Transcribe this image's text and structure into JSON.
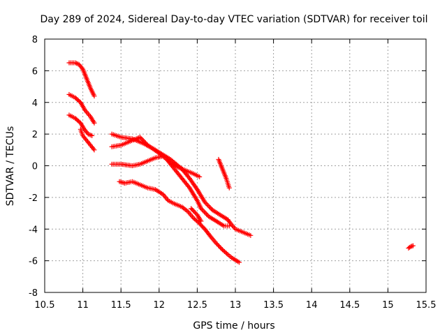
{
  "chart_data": {
    "type": "scatter",
    "title": "Day 289 of 2024, Sidereal Day-to-day VTEC variation (SDTVAR) for receiver toil",
    "xlabel": "GPS time / hours",
    "ylabel": "SDTVAR / TECUs",
    "xlim": [
      10.5,
      15.5
    ],
    "ylim": [
      -8,
      8
    ],
    "xticks": [
      10.5,
      11,
      11.5,
      12,
      12.5,
      13,
      13.5,
      14,
      14.5,
      15,
      15.5
    ],
    "yticks": [
      -8,
      -6,
      -4,
      -2,
      0,
      2,
      4,
      6,
      8
    ],
    "xtick_labels": [
      "10.5",
      "11",
      "11.5",
      "12",
      "12.5",
      "13",
      "13.5",
      "14",
      "14.5",
      "15",
      "15.5"
    ],
    "ytick_labels": [
      "-8",
      "-6",
      "-4",
      "-2",
      "0",
      "2",
      "4",
      "6",
      "8"
    ],
    "grid": true,
    "marker": "+",
    "color": "#ff0000",
    "series": [
      {
        "name": "arc1",
        "points": [
          [
            10.82,
            6.5
          ],
          [
            10.9,
            6.5
          ],
          [
            10.95,
            6.4
          ],
          [
            11.0,
            6.1
          ],
          [
            11.05,
            5.5
          ],
          [
            11.1,
            4.9
          ],
          [
            11.15,
            4.4
          ]
        ]
      },
      {
        "name": "arc2",
        "points": [
          [
            10.82,
            4.5
          ],
          [
            10.9,
            4.3
          ],
          [
            10.97,
            4.0
          ],
          [
            11.03,
            3.5
          ],
          [
            11.1,
            3.1
          ],
          [
            11.15,
            2.7
          ]
        ]
      },
      {
        "name": "arc3",
        "points": [
          [
            10.82,
            3.2
          ],
          [
            10.9,
            3.0
          ],
          [
            10.97,
            2.7
          ],
          [
            11.02,
            2.3
          ],
          [
            11.07,
            2.0
          ],
          [
            11.12,
            1.9
          ]
        ]
      },
      {
        "name": "arc4",
        "points": [
          [
            10.97,
            2.3
          ],
          [
            11.0,
            1.9
          ],
          [
            11.05,
            1.6
          ],
          [
            11.1,
            1.3
          ],
          [
            11.15,
            1.0
          ]
        ]
      },
      {
        "name": "arc5",
        "points": [
          [
            11.38,
            2.0
          ],
          [
            11.5,
            1.8
          ],
          [
            11.65,
            1.7
          ],
          [
            11.8,
            1.4
          ],
          [
            11.95,
            1.0
          ],
          [
            12.05,
            0.7
          ],
          [
            12.15,
            0.4
          ],
          [
            12.3,
            -0.2
          ],
          [
            12.4,
            -0.8
          ],
          [
            12.5,
            -1.5
          ],
          [
            12.6,
            -2.3
          ],
          [
            12.7,
            -2.8
          ],
          [
            12.8,
            -3.1
          ],
          [
            12.9,
            -3.4
          ],
          [
            12.93,
            -3.6
          ],
          [
            13.0,
            -4.0
          ],
          [
            13.1,
            -4.2
          ],
          [
            13.2,
            -4.4
          ]
        ]
      },
      {
        "name": "arc6",
        "points": [
          [
            11.38,
            1.2
          ],
          [
            11.5,
            1.3
          ],
          [
            11.6,
            1.5
          ],
          [
            11.7,
            1.7
          ],
          [
            11.75,
            1.8
          ],
          [
            11.85,
            1.3
          ],
          [
            12.0,
            0.8
          ],
          [
            12.1,
            0.4
          ],
          [
            12.2,
            -0.2
          ],
          [
            12.3,
            -0.8
          ],
          [
            12.4,
            -1.4
          ],
          [
            12.5,
            -2.2
          ],
          [
            12.55,
            -2.7
          ],
          [
            12.65,
            -3.2
          ],
          [
            12.75,
            -3.5
          ],
          [
            12.85,
            -3.8
          ],
          [
            12.92,
            -3.8
          ]
        ]
      },
      {
        "name": "arc7",
        "points": [
          [
            11.38,
            0.1
          ],
          [
            11.5,
            0.1
          ],
          [
            11.65,
            0.0
          ],
          [
            11.75,
            0.1
          ],
          [
            11.85,
            0.3
          ],
          [
            11.95,
            0.5
          ],
          [
            12.05,
            0.6
          ],
          [
            12.15,
            0.2
          ],
          [
            12.25,
            -0.1
          ],
          [
            12.35,
            -0.3
          ],
          [
            12.45,
            -0.5
          ],
          [
            12.53,
            -0.7
          ]
        ]
      },
      {
        "name": "arc8",
        "points": [
          [
            11.48,
            -1.0
          ],
          [
            11.55,
            -1.1
          ],
          [
            11.65,
            -1.0
          ],
          [
            11.75,
            -1.2
          ],
          [
            11.85,
            -1.4
          ],
          [
            11.95,
            -1.5
          ],
          [
            12.05,
            -1.8
          ],
          [
            12.12,
            -2.2
          ],
          [
            12.2,
            -2.4
          ],
          [
            12.3,
            -2.6
          ],
          [
            12.38,
            -2.9
          ],
          [
            12.45,
            -3.3
          ],
          [
            12.52,
            -3.6
          ],
          [
            12.6,
            -4.0
          ],
          [
            12.68,
            -4.5
          ],
          [
            12.75,
            -4.9
          ],
          [
            12.83,
            -5.3
          ],
          [
            12.9,
            -5.6
          ],
          [
            12.95,
            -5.8
          ],
          [
            13.05,
            -6.1
          ]
        ]
      },
      {
        "name": "arc9",
        "points": [
          [
            12.42,
            -2.7
          ],
          [
            12.5,
            -3.1
          ],
          [
            12.55,
            -3.5
          ]
        ]
      },
      {
        "name": "arc10",
        "points": [
          [
            12.78,
            0.4
          ],
          [
            12.83,
            -0.2
          ],
          [
            12.88,
            -0.8
          ],
          [
            12.92,
            -1.4
          ]
        ]
      },
      {
        "name": "arc11",
        "points": [
          [
            15.27,
            -5.2
          ],
          [
            15.3,
            -5.1
          ],
          [
            15.33,
            -5.05
          ]
        ]
      }
    ]
  }
}
